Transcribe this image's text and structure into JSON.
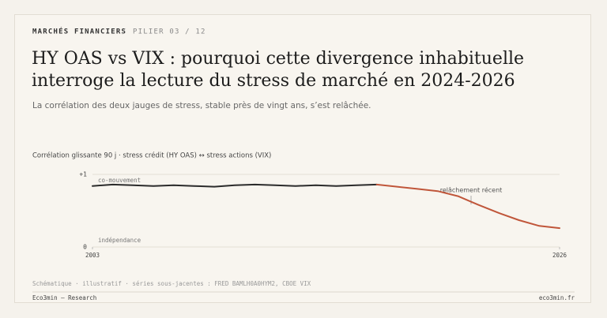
{
  "header": {
    "kicker": "MARCHÉS FINANCIERS",
    "series": "PILIER 03 / 12",
    "title_lines": [
      "HY OAS vs VIX : pourquoi cette divergence inhabituelle",
      "interroge la lecture du stress de marché en 2024-2026"
    ],
    "subtitle": "La corrélation des deux jauges de stress, stable près de vingt ans, s’est relâchée."
  },
  "chart_data": {
    "type": "line",
    "title": "Corrélation glissante 90 j · stress crédit (HY OAS) ↔ stress actions (VIX)",
    "annotations": [
      "co-mouvement",
      "indépendance",
      "relâchement récent"
    ],
    "series": [
      {
        "color": "#2b2b2b",
        "x": [
          2003,
          2004,
          2005,
          2006,
          2007,
          2008,
          2009,
          2010,
          2011,
          2012,
          2013,
          2014,
          2015,
          2016,
          2017
        ],
        "values": [
          0.84,
          0.86,
          0.85,
          0.84,
          0.85,
          0.84,
          0.83,
          0.85,
          0.86,
          0.85,
          0.84,
          0.85,
          0.84,
          0.85,
          0.86
        ]
      },
      {
        "color": "#c0563a",
        "x": [
          2017,
          2018,
          2019,
          2020,
          2021,
          2022,
          2023,
          2024,
          2025,
          2026
        ],
        "values": [
          0.86,
          0.83,
          0.8,
          0.77,
          0.7,
          0.58,
          0.47,
          0.37,
          0.29,
          0.26
        ]
      }
    ],
    "xlim": [
      2003,
      2026
    ],
    "xticks": [
      2003,
      2026
    ],
    "ylim": [
      0,
      1
    ],
    "yticks": [
      0,
      {
        "value": 1,
        "label": "+1"
      }
    ]
  },
  "footer": {
    "note": "Schématique · illustratif · séries sous-jacentes : FRED BAMLH0A0HYM2, CBOE VIX",
    "brand": "Eco3min — Research",
    "site": "eco3min.fr"
  }
}
